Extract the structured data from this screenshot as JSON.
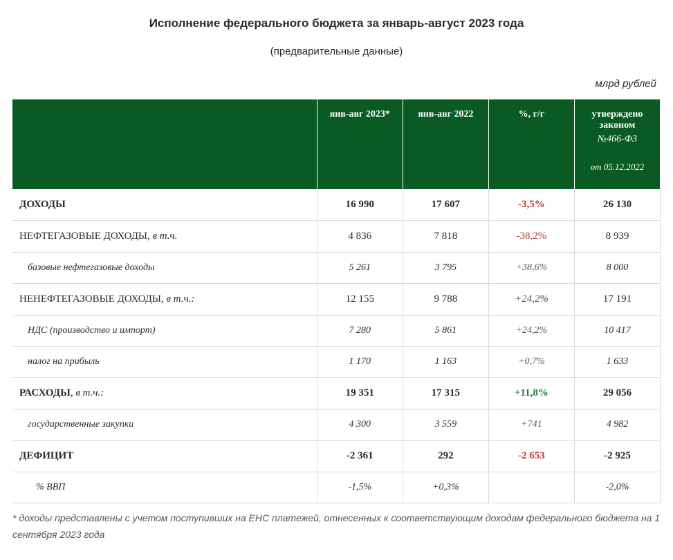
{
  "header": {
    "title": "Исполнение федерального бюджета за январь-август 2023 года",
    "subtitle": "(предварительные данные)",
    "unit": "млрд рублей"
  },
  "columns": {
    "c0": "",
    "c1": "янв-авг 2023*",
    "c2": "янв-авг 2022",
    "c3": "%, г/г",
    "c4_line1": "утверждено законом",
    "c4_line2": "№466-Ф3",
    "c4_line3": "от 05.12.2022"
  },
  "rows": {
    "r0": {
      "label": "ДОХОДЫ",
      "v1": "16 990",
      "v2": "17 607",
      "pct": "-3,5%",
      "law": "26 130"
    },
    "r1": {
      "label_pre": "НЕФТЕГАЗОВЫЕ ДОХОДЫ, ",
      "label_suf": "в т.ч.",
      "v1": "4 836",
      "v2": "7 818",
      "pct": "-38,2%",
      "law": "8 939"
    },
    "r2": {
      "label": "базовые нефтегазовые доходы",
      "v1": "5 261",
      "v2": "3 795",
      "pct": "+38,6%",
      "law": "8 000"
    },
    "r3": {
      "label_pre": "НЕНЕФТЕГАЗОВЫЕ ДОХОДЫ, ",
      "label_suf": "в т.ч.:",
      "v1": "12 155",
      "v2": "9 788",
      "pct": "+24,2%",
      "law": "17 191"
    },
    "r4": {
      "label": "НДС (производство и импорт)",
      "v1": "7 280",
      "v2": "5 861",
      "pct": "+24,2%",
      "law": "10 417"
    },
    "r5": {
      "label": "налог на прибыль",
      "v1": "1 170",
      "v2": "1 163",
      "pct": "+0,7%",
      "law": "1 633"
    },
    "r6": {
      "label_pre": "РАСХОДЫ",
      "label_suf": ", в т.ч.:",
      "v1": "19 351",
      "v2": "17 315",
      "pct": "+11,8%",
      "law": "29 056"
    },
    "r7": {
      "label": "государственные закупки",
      "v1": "4 300",
      "v2": "3 559",
      "pct": "+741",
      "law": "4 982"
    },
    "r8": {
      "label": "ДЕФИЦИТ",
      "v1": "-2 361",
      "v2": "292",
      "pct": "-2 653",
      "law": "-2 925"
    },
    "r9": {
      "label": "% ВВП",
      "v1": "-1,5%",
      "v2": "+0,3%",
      "pct": "",
      "law": "-2,0%"
    }
  },
  "footnote": "* доходы представлены с учетом поступивших на ЕНС платежей, отнесенных к соответствующим доходам федерального бюджета на 1 сентября 2023 года",
  "style": {
    "header_bg": "#0a5a23",
    "header_fg": "#ffffff",
    "neg_color": "#c0392b",
    "pos_color": "#1e7e34",
    "border_color": "#d9d9d9",
    "bg": "#ffffff"
  }
}
